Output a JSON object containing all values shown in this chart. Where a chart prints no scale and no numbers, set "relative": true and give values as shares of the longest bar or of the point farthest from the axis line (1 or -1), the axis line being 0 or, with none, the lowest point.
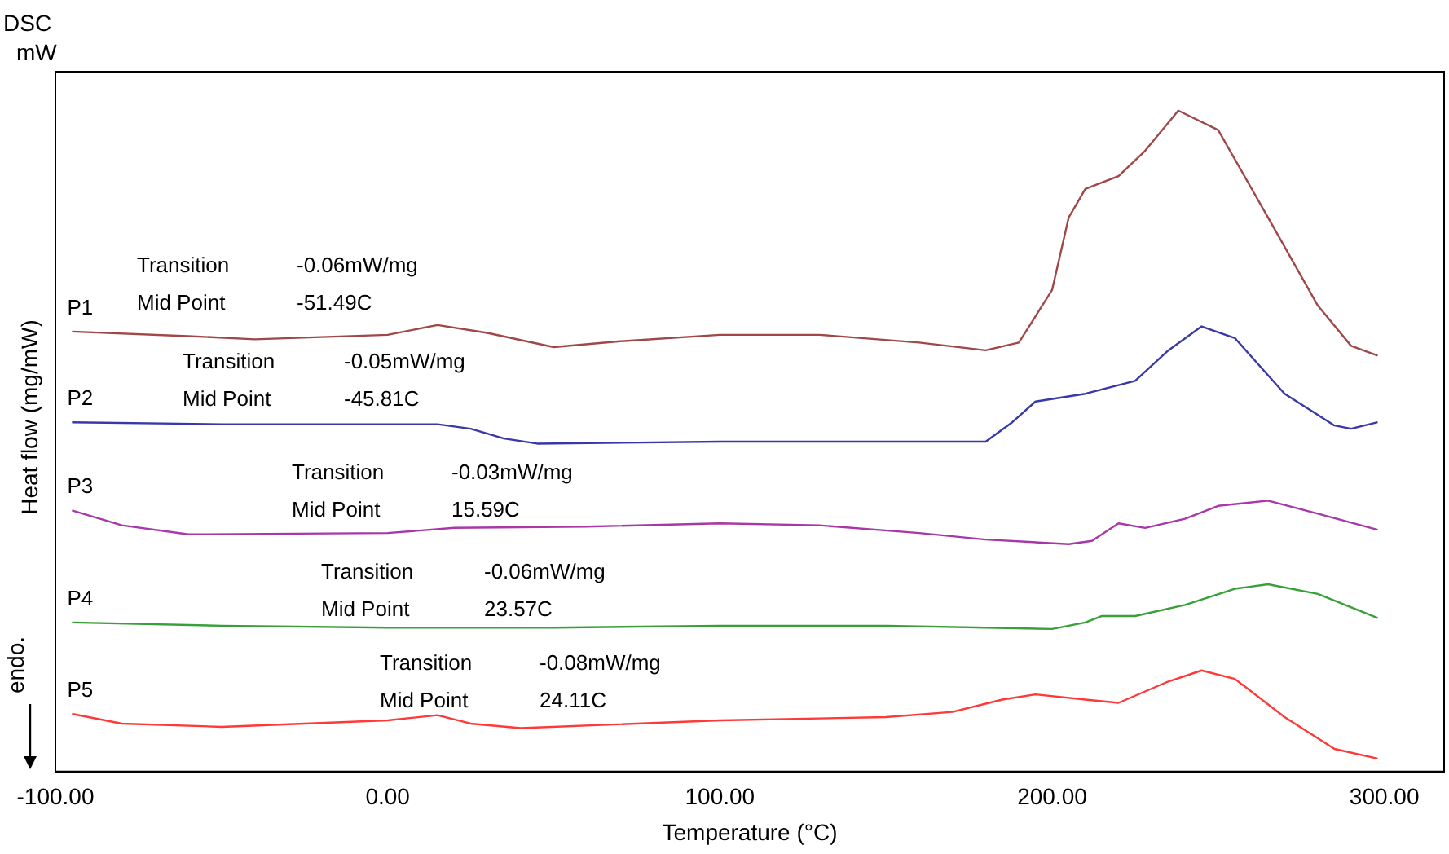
{
  "chart_data": {
    "type": "line",
    "relative": true,
    "xlabel": "Temperature (°C)",
    "ylabel": "Heat flow (mg/mW)",
    "xlim": [
      -100,
      318
    ],
    "xticks": [
      {
        "value": -100,
        "label": "-100.00"
      },
      {
        "value": 0,
        "label": "0.00"
      },
      {
        "value": 100,
        "label": "100.00"
      },
      {
        "value": 200,
        "label": "200.00"
      },
      {
        "value": 300,
        "label": "300.00"
      }
    ],
    "grid": false,
    "legend": false,
    "marker": "none",
    "line_style": "solid",
    "series": [
      {
        "name": "P1",
        "color": "#a04848",
        "x": [
          -95,
          -60,
          -40,
          0,
          15,
          30,
          50,
          70,
          100,
          130,
          160,
          180,
          190,
          200,
          205,
          210,
          220,
          228,
          238,
          250,
          265,
          280,
          290,
          298
        ],
        "values": [
          0.659,
          0.652,
          0.647,
          0.654,
          0.669,
          0.657,
          0.635,
          0.644,
          0.654,
          0.654,
          0.642,
          0.63,
          0.642,
          0.723,
          0.835,
          0.879,
          0.899,
          0.938,
          1,
          0.97,
          0.835,
          0.699,
          0.637,
          0.622
        ]
      },
      {
        "name": "P2",
        "color": "#3838a8",
        "x": [
          -95,
          -50,
          0,
          15,
          25,
          35,
          45,
          100,
          150,
          180,
          188,
          195,
          210,
          225,
          235,
          245,
          255,
          270,
          285,
          290,
          298
        ],
        "values": [
          0.519,
          0.516,
          0.516,
          0.516,
          0.509,
          0.494,
          0.486,
          0.489,
          0.489,
          0.489,
          0.519,
          0.551,
          0.563,
          0.583,
          0.63,
          0.667,
          0.649,
          0.563,
          0.514,
          0.509,
          0.519
        ]
      },
      {
        "name": "P3",
        "color": "#a838a8",
        "x": [
          -95,
          -80,
          -60,
          0,
          20,
          60,
          100,
          130,
          160,
          180,
          205,
          212,
          220,
          228,
          240,
          250,
          265,
          280,
          298
        ],
        "values": [
          0.383,
          0.36,
          0.346,
          0.348,
          0.356,
          0.358,
          0.363,
          0.36,
          0.348,
          0.338,
          0.331,
          0.336,
          0.363,
          0.356,
          0.37,
          0.39,
          0.398,
          0.378,
          0.353
        ]
      },
      {
        "name": "P4",
        "color": "#38a038",
        "x": [
          -95,
          -50,
          0,
          50,
          100,
          150,
          180,
          200,
          210,
          215,
          225,
          240,
          255,
          265,
          280,
          298
        ],
        "values": [
          0.21,
          0.205,
          0.202,
          0.202,
          0.205,
          0.205,
          0.202,
          0.2,
          0.21,
          0.22,
          0.22,
          0.237,
          0.262,
          0.269,
          0.254,
          0.217
        ]
      },
      {
        "name": "P5",
        "color": "#ff3838",
        "x": [
          -95,
          -80,
          -50,
          0,
          15,
          25,
          40,
          100,
          150,
          170,
          185,
          195,
          210,
          220,
          235,
          245,
          255,
          270,
          285,
          298
        ],
        "values": [
          0.069,
          0.054,
          0.049,
          0.059,
          0.067,
          0.054,
          0.047,
          0.059,
          0.064,
          0.072,
          0.091,
          0.099,
          0.091,
          0.086,
          0.119,
          0.136,
          0.123,
          0.064,
          0.015,
          0
        ]
      }
    ],
    "annotations": [
      "DSC",
      "mW",
      "endo.",
      "Transition",
      "-0.06mW/mg",
      "Mid Point",
      "-51.49C",
      "Transition",
      "-0.05mW/mg",
      "Mid Point",
      "-45.81C",
      "Transition",
      "-0.03mW/mg",
      "Mid Point",
      "15.59C",
      "Transition",
      "-0.06mW/mg",
      "Mid Point",
      "23.57C",
      "Transition",
      "-0.08mW/mg",
      "Mid Point",
      "24.11C"
    ]
  }
}
